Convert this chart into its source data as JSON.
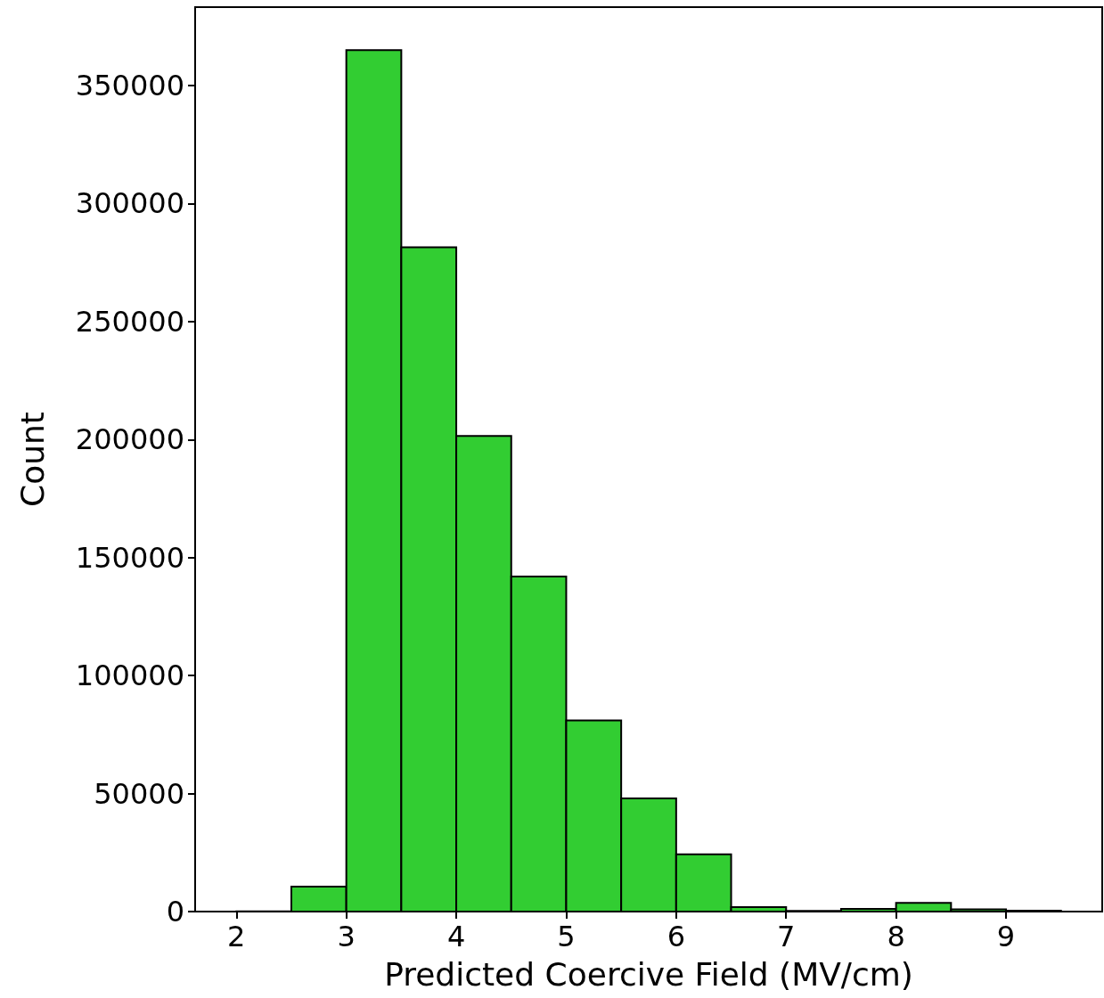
{
  "chart_data": {
    "type": "histogram",
    "xlabel": "Predicted Coercive Field (MV/cm)",
    "ylabel": "Count",
    "bins": [
      2,
      2.5,
      3,
      3.5,
      4,
      4.5,
      5,
      5.5,
      6,
      6.5,
      7,
      7.5,
      8,
      8.5,
      9,
      9.5
    ],
    "values": [
      100,
      10600,
      365000,
      281500,
      201500,
      142000,
      81000,
      48000,
      24300,
      1900,
      300,
      1100,
      3700,
      900,
      400
    ],
    "color": "#32cd32",
    "xlim": [
      1.625,
      9.875
    ],
    "xticks": [
      2,
      3,
      4,
      5,
      6,
      7,
      8,
      9
    ],
    "ylim": [
      0,
      383250
    ],
    "yticks": [
      0,
      50000,
      100000,
      150000,
      200000,
      250000,
      300000,
      350000
    ],
    "grid": false
  }
}
